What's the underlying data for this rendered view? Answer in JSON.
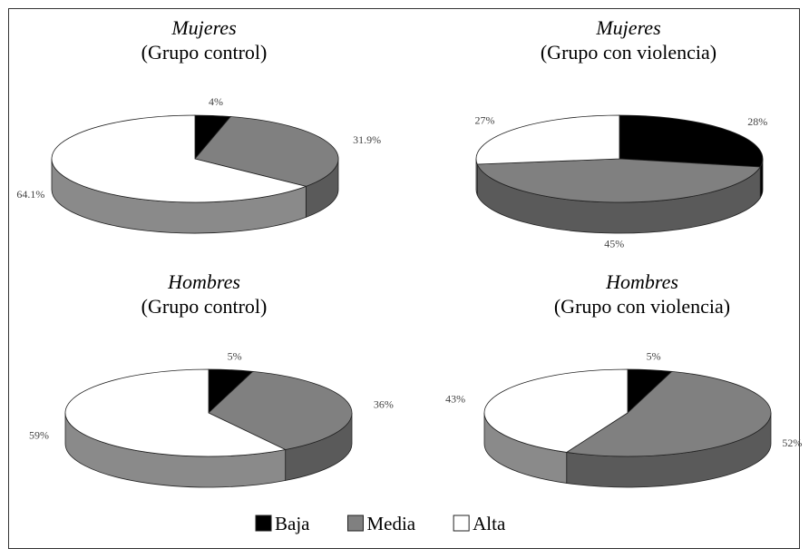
{
  "chart_data": [
    {
      "type": "pie3d",
      "title": "Mujeres",
      "subtitle": "(Grupo control)",
      "values": [
        4,
        31.9,
        64.1
      ],
      "value_labels": [
        "4%",
        "31.9%",
        "64.1%"
      ]
    },
    {
      "type": "pie3d",
      "title": "Mujeres",
      "subtitle": "(Grupo con violencia)",
      "values": [
        28,
        45,
        27
      ],
      "value_labels": [
        "28%",
        "45%",
        "27%"
      ]
    },
    {
      "type": "pie3d",
      "title": "Hombres",
      "subtitle": "(Grupo control)",
      "values": [
        5,
        36,
        59
      ],
      "value_labels": [
        "5%",
        "36%",
        "59%"
      ]
    },
    {
      "type": "pie3d",
      "title": "Hombres",
      "subtitle": "(Grupo con violencia)",
      "values": [
        5,
        52,
        43
      ],
      "value_labels": [
        "5%",
        "52%",
        "43%"
      ]
    }
  ],
  "legend": {
    "items": [
      {
        "name": "Baja",
        "color": "#000000"
      },
      {
        "name": "Media",
        "color": "#808080"
      },
      {
        "name": "Alta",
        "color": "#ffffff"
      }
    ]
  }
}
